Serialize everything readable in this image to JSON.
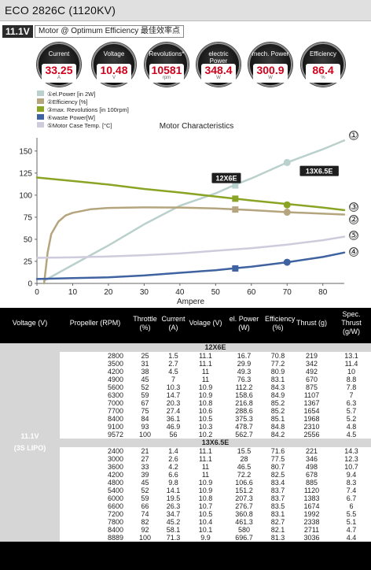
{
  "title": "ECO 2826C (1120KV)",
  "voltage_tag": "11.1V",
  "mode": "Motor @ Optimum Efficiency  最佳效率点",
  "gauges": [
    {
      "label": "Current",
      "value": "33.25",
      "unit": "A"
    },
    {
      "label": "Voltage",
      "value": "10.48",
      "unit": "V"
    },
    {
      "label": "Revolutions*",
      "value": "10581",
      "unit": "rpm"
    },
    {
      "label": "electric Power",
      "value": "348.4",
      "unit": "W"
    },
    {
      "label": "mech. Power",
      "value": "300.9",
      "unit": "W"
    },
    {
      "label": "Efficiency",
      "value": "86.4",
      "unit": "%"
    }
  ],
  "colors": {
    "el_power": "#b9d0cd",
    "efficiency": "#b5a57e",
    "revolutions": "#8aa425",
    "waste_power": "#3f62a0",
    "case_temp": "#cfcbdc",
    "value_red": "#d0021b"
  },
  "chart_data": {
    "type": "line",
    "title": "Motor Characteristics",
    "xlabel": "Ampere",
    "ylabel": "",
    "xlim": [
      0,
      86
    ],
    "ylim": [
      0,
      165
    ],
    "xticks": [
      0,
      10,
      20,
      30,
      40,
      50,
      60,
      70,
      80
    ],
    "yticks": [
      0,
      25,
      50,
      75,
      100,
      125,
      150
    ],
    "grid": false,
    "legend_position": "top-left",
    "series": [
      {
        "name": "①el.Power [in 2W]",
        "end_label": "①",
        "color_key": "el_power",
        "x": [
          2,
          10,
          20,
          30,
          40,
          50,
          55,
          60,
          70,
          80,
          86
        ],
        "y": [
          3,
          21,
          43,
          67,
          88,
          102,
          111,
          119,
          137,
          152,
          162
        ],
        "markers": [
          {
            "x": 55.5,
            "y": 111
          },
          {
            "x": 70,
            "y": 137
          }
        ]
      },
      {
        "name": "②Efficiency [%]",
        "end_label": "②",
        "color_key": "efficiency",
        "x": [
          2,
          3,
          4,
          6,
          8,
          10,
          15,
          20,
          30,
          40,
          50,
          60,
          70,
          80,
          86
        ],
        "y": [
          0,
          35,
          56,
          70,
          77,
          80,
          84,
          85.5,
          86.2,
          86,
          85,
          83,
          80.7,
          79,
          78
        ],
        "markers": [
          {
            "x": 55.5,
            "y": 83.7
          },
          {
            "x": 70,
            "y": 80.7
          }
        ]
      },
      {
        "name": "③max. Revolutions [in 100rpm]",
        "end_label": "③",
        "color_key": "revolutions",
        "x": [
          0,
          10,
          20,
          30,
          40,
          50,
          60,
          70,
          80,
          86
        ],
        "y": [
          120,
          116,
          112,
          107,
          103,
          98.5,
          94,
          90,
          86,
          83
        ],
        "markers": [
          {
            "x": 55.5,
            "y": 96
          },
          {
            "x": 70,
            "y": 89
          }
        ]
      },
      {
        "name": "④waste Power[W]",
        "end_label": "④",
        "color_key": "waste_power",
        "x": [
          0,
          10,
          20,
          30,
          40,
          50,
          55,
          60,
          70,
          80,
          86
        ],
        "y": [
          5,
          6,
          7,
          9,
          12,
          15,
          17,
          19,
          24,
          30,
          35
        ],
        "markers": [
          {
            "x": 55.5,
            "y": 17
          },
          {
            "x": 70,
            "y": 24
          }
        ]
      },
      {
        "name": "⑤Motor Case Temp. [°C]",
        "end_label": "⑤",
        "color_key": "case_temp",
        "x": [
          0,
          10,
          20,
          30,
          40,
          50,
          60,
          70,
          80,
          86
        ],
        "y": [
          29,
          29.5,
          30.5,
          32,
          34,
          37,
          40,
          44,
          49,
          53
        ],
        "markers": []
      }
    ],
    "annotations": [
      {
        "text": "12X6E",
        "x": 53,
        "y": 119
      },
      {
        "text": "13X6.5E",
        "x": 79,
        "y": 127
      }
    ]
  },
  "table": {
    "headers": [
      "Voltage (V)",
      "Propeller (RPM)",
      "Throttle (%)",
      "Current (A)",
      "Volage (V)",
      "el. Power (W)",
      "Efficiency (%)",
      "Thrust (g)",
      "Spec. Thrust (g/W)"
    ],
    "config_label_1": "11.1V",
    "config_label_2": "(3S LIPO)",
    "groups": [
      {
        "name": "12X6E",
        "rows": [
          [
            "2800",
            "25",
            "1.5",
            "11.1",
            "16.7",
            "70.8",
            "219",
            "13.1"
          ],
          [
            "3500",
            "31",
            "2.7",
            "11.1",
            "29.9",
            "77.2",
            "342",
            "11.4"
          ],
          [
            "4200",
            "38",
            "4.5",
            "11",
            "49.3",
            "80.9",
            "492",
            "10"
          ],
          [
            "4900",
            "45",
            "7",
            "11",
            "76.3",
            "83.1",
            "670",
            "8.8"
          ],
          [
            "5600",
            "52",
            "10.3",
            "10.9",
            "112.2",
            "84.3",
            "875",
            "7.8"
          ],
          [
            "6300",
            "59",
            "14.7",
            "10.9",
            "158.6",
            "84.9",
            "1107",
            "7"
          ],
          [
            "7000",
            "67",
            "20.3",
            "10.8",
            "216.8",
            "85.2",
            "1367",
            "6.3"
          ],
          [
            "7700",
            "75",
            "27.4",
            "10.6",
            "288.6",
            "85.2",
            "1654",
            "5.7"
          ],
          [
            "8400",
            "84",
            "36.1",
            "10.5",
            "375.3",
            "85.1",
            "1968",
            "5.2"
          ],
          [
            "9100",
            "93",
            "46.9",
            "10.3",
            "478.7",
            "84.8",
            "2310",
            "4.8"
          ],
          [
            "9572",
            "100",
            "56",
            "10.2",
            "562.7",
            "84.2",
            "2556",
            "4.5"
          ]
        ]
      },
      {
        "name": "13X6.5E",
        "rows": [
          [
            "2400",
            "21",
            "1.4",
            "11.1",
            "15.5",
            "71.6",
            "221",
            "14.3"
          ],
          [
            "3000",
            "27",
            "2.6",
            "11.1",
            "28",
            "77.5",
            "346",
            "12.3"
          ],
          [
            "3600",
            "33",
            "4.2",
            "11",
            "46.5",
            "80.7",
            "498",
            "10.7"
          ],
          [
            "4200",
            "39",
            "6.6",
            "11",
            "72.2",
            "82.5",
            "678",
            "9.4"
          ],
          [
            "4800",
            "45",
            "9.8",
            "10.9",
            "106.6",
            "83.4",
            "885",
            "8.3"
          ],
          [
            "5400",
            "52",
            "14.1",
            "10.9",
            "151.2",
            "83.7",
            "1120",
            "7.4"
          ],
          [
            "6000",
            "59",
            "19.5",
            "10.8",
            "207.3",
            "83.7",
            "1383",
            "6.7"
          ],
          [
            "6600",
            "66",
            "26.3",
            "10.7",
            "276.7",
            "83.5",
            "1674",
            "6"
          ],
          [
            "7200",
            "74",
            "34.7",
            "10.5",
            "360.8",
            "83.1",
            "1992",
            "5.5"
          ],
          [
            "7800",
            "82",
            "45.2",
            "10.4",
            "461.3",
            "82.7",
            "2338",
            "5.1"
          ],
          [
            "8400",
            "92",
            "58.1",
            "10.1",
            "580",
            "82.1",
            "2711",
            "4.7"
          ],
          [
            "8889",
            "100",
            "71.3",
            "9.9",
            "696.7",
            "81.3",
            "3036",
            "4.4"
          ]
        ]
      }
    ]
  }
}
